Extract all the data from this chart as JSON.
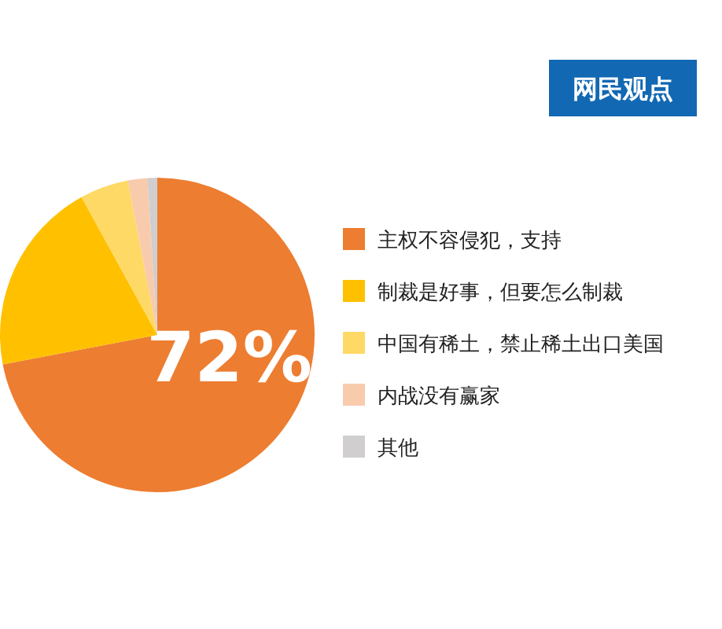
{
  "chart_data": {
    "type": "pie",
    "title": "网民观点",
    "categories": [
      "主权不容侵犯，支持",
      "制裁是好事，但要怎么制裁",
      "中国有稀土，禁止稀土出口美国",
      "内战没有赢家",
      "其他"
    ],
    "values": [
      72,
      20,
      5,
      2,
      1
    ],
    "colors": [
      "#ed7d31",
      "#ffc000",
      "#ffd966",
      "#f8cbad",
      "#d0cece"
    ],
    "value_labels": [
      "72%",
      null,
      null,
      null,
      null
    ],
    "legend": "right"
  }
}
